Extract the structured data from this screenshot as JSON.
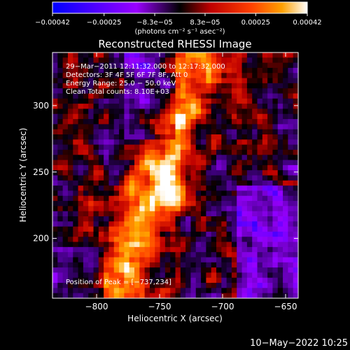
{
  "chart_data": {
    "type": "heatmap",
    "title": "Reconstructed RHESSI Image",
    "xlabel": "Heliocentric X (arcsec)",
    "ylabel": "Heliocentric Y (arcsec)",
    "xlim": [
      -835,
      -640
    ],
    "ylim": [
      155,
      340
    ],
    "x_ticks": [
      -800,
      -750,
      -700,
      -650
    ],
    "x_tick_labels": [
      "−800",
      "−750",
      "−700",
      "−650"
    ],
    "y_ticks": [
      200,
      250,
      300
    ],
    "y_tick_labels": [
      "200",
      "250",
      "300"
    ],
    "colorbar": {
      "min": -0.00042,
      "max": 0.00042,
      "ticks": [
        -0.00042,
        -0.00025,
        -8.3e-05,
        8.3e-05,
        0.00025,
        0.00042
      ],
      "tick_labels": [
        "−0.00042",
        "−0.00025",
        "−8.3e−05",
        "8.3e−05",
        "0.00025",
        "0.00042"
      ],
      "units": "(photons cm⁻² s⁻¹ asec⁻²)"
    },
    "annotations": [
      "29−Mar−2011 12:11:32.000 to 12:17:32.000",
      "Detectors: 3F 4F 5F 6F 7F 8F, Att 0",
      "Energy Range: 25.0 − 50.0 keV",
      "Clean     Total counts: 8.10E+03"
    ],
    "peak_label": "Position of Peak = [−737,234]",
    "peak": [
      -737,
      234
    ],
    "timestamp": "10−May−2022 10:25"
  }
}
